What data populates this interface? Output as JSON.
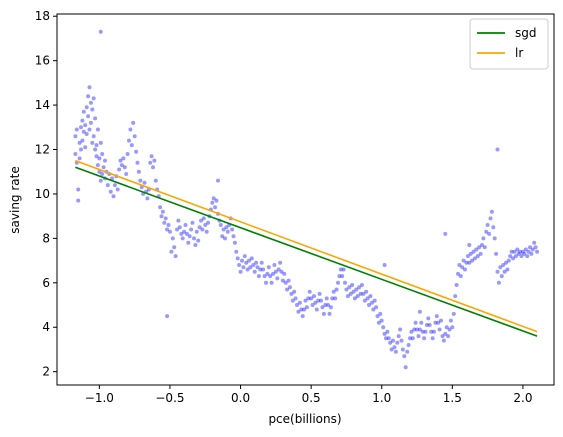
{
  "chart_data": {
    "type": "scatter",
    "title": "",
    "xlabel": "pce(billions)",
    "ylabel": "saving rate",
    "xlim": [
      -1.3,
      2.22
    ],
    "ylim": [
      1.4,
      18.1
    ],
    "xticks": [
      -1.0,
      -0.5,
      0.0,
      0.5,
      1.0,
      1.5,
      2.0
    ],
    "xtick_labels": [
      "−1.0",
      "−0.5",
      "0.0",
      "0.5",
      "1.0",
      "1.5",
      "2.0"
    ],
    "yticks": [
      2,
      4,
      6,
      8,
      10,
      12,
      14,
      16,
      18
    ],
    "ytick_labels": [
      "2",
      "4",
      "6",
      "8",
      "10",
      "12",
      "14",
      "16",
      "18"
    ],
    "grid": false,
    "legend_position": "top-right",
    "scatter": {
      "color": "#0000ff",
      "opacity": 0.4,
      "points": [
        [
          -1.17,
          11.8
        ],
        [
          -1.17,
          12.6
        ],
        [
          -1.16,
          12.9
        ],
        [
          -1.16,
          11.4
        ],
        [
          -1.15,
          10.2
        ],
        [
          -1.15,
          9.7
        ],
        [
          -1.14,
          12.3
        ],
        [
          -1.14,
          11.6
        ],
        [
          -1.13,
          12.0
        ],
        [
          -1.13,
          13.0
        ],
        [
          -1.12,
          12.4
        ],
        [
          -1.12,
          13.3
        ],
        [
          -1.11,
          12.8
        ],
        [
          -1.11,
          13.7
        ],
        [
          -1.1,
          13.1
        ],
        [
          -1.1,
          12.1
        ],
        [
          -1.09,
          13.9
        ],
        [
          -1.09,
          12.7
        ],
        [
          -1.08,
          14.4
        ],
        [
          -1.08,
          13.5
        ],
        [
          -1.07,
          14.8
        ],
        [
          -1.07,
          12.9
        ],
        [
          -1.06,
          13.2
        ],
        [
          -1.06,
          14.1
        ],
        [
          -1.05,
          12.3
        ],
        [
          -1.05,
          13.8
        ],
        [
          -1.04,
          12.6
        ],
        [
          -1.04,
          14.3
        ],
        [
          -1.03,
          12.0
        ],
        [
          -1.03,
          13.4
        ],
        [
          -1.02,
          11.7
        ],
        [
          -1.02,
          12.2
        ],
        [
          -1.01,
          11.3
        ],
        [
          -1.01,
          12.9
        ],
        [
          -1.0,
          11.0
        ],
        [
          -1.0,
          11.6
        ],
        [
          -0.99,
          10.6
        ],
        [
          -0.99,
          12.3
        ],
        [
          -0.98,
          10.9
        ],
        [
          -0.98,
          11.8
        ],
        [
          -0.97,
          11.2
        ],
        [
          -0.96,
          10.7
        ],
        [
          -0.96,
          11.5
        ],
        [
          -0.95,
          11.0
        ],
        [
          -0.94,
          10.4
        ],
        [
          -0.93,
          10.9
        ],
        [
          -0.92,
          10.1
        ],
        [
          -0.91,
          10.7
        ],
        [
          -0.9,
          9.9
        ],
        [
          -0.89,
          10.4
        ],
        [
          -0.88,
          10.8
        ],
        [
          -0.87,
          10.2
        ],
        [
          -0.86,
          11.1
        ],
        [
          -0.85,
          11.5
        ],
        [
          -0.84,
          11.3
        ],
        [
          -0.83,
          11.6
        ],
        [
          -0.82,
          11.2
        ],
        [
          -0.81,
          10.9
        ],
        [
          -0.8,
          11.8
        ],
        [
          -0.79,
          12.4
        ],
        [
          -0.78,
          12.9
        ],
        [
          -0.77,
          12.2
        ],
        [
          -0.76,
          13.2
        ],
        [
          -0.75,
          12.6
        ],
        [
          -0.74,
          11.9
        ],
        [
          -0.73,
          11.4
        ],
        [
          -0.72,
          11.0
        ],
        [
          -0.71,
          10.6
        ],
        [
          -0.7,
          10.3
        ],
        [
          -0.69,
          10.0
        ],
        [
          -0.68,
          10.5
        ],
        [
          -0.67,
          10.1
        ],
        [
          -0.66,
          9.8
        ],
        [
          -0.65,
          10.2
        ],
        [
          -0.64,
          11.4
        ],
        [
          -0.63,
          11.7
        ],
        [
          -0.62,
          11.2
        ],
        [
          -0.61,
          11.5
        ],
        [
          -0.6,
          10.6
        ],
        [
          -0.59,
          10.2
        ],
        [
          -0.58,
          9.9
        ],
        [
          -0.57,
          9.4
        ],
        [
          -0.56,
          9.0
        ],
        [
          -0.55,
          9.2
        ],
        [
          -0.54,
          8.7
        ],
        [
          -0.53,
          8.9
        ],
        [
          -0.52,
          8.4
        ],
        [
          -0.51,
          8.6
        ],
        [
          -0.5,
          8.3
        ],
        [
          -0.49,
          7.4
        ],
        [
          -0.48,
          8.0
        ],
        [
          -0.47,
          7.6
        ],
        [
          -0.46,
          7.2
        ],
        [
          -0.45,
          8.4
        ],
        [
          -0.44,
          8.8
        ],
        [
          -0.43,
          8.5
        ],
        [
          -0.42,
          8.2
        ],
        [
          -0.41,
          8.0
        ],
        [
          -0.4,
          8.3
        ],
        [
          -0.39,
          8.6
        ],
        [
          -0.38,
          8.2
        ],
        [
          -0.37,
          7.8
        ],
        [
          -0.36,
          8.1
        ],
        [
          -0.35,
          8.4
        ],
        [
          -0.34,
          8.7
        ],
        [
          -0.33,
          8.0
        ],
        [
          -0.32,
          7.7
        ],
        [
          -0.31,
          8.3
        ],
        [
          -0.3,
          7.9
        ],
        [
          -0.29,
          8.5
        ],
        [
          -0.28,
          8.8
        ],
        [
          -0.27,
          8.4
        ],
        [
          -0.26,
          8.9
        ],
        [
          -0.25,
          8.6
        ],
        [
          -0.24,
          8.3
        ],
        [
          -0.23,
          8.7
        ],
        [
          -0.22,
          9.0
        ],
        [
          -0.21,
          9.3
        ],
        [
          -0.2,
          9.6
        ],
        [
          -0.19,
          9.8
        ],
        [
          -0.18,
          9.4
        ],
        [
          -0.17,
          9.7
        ],
        [
          -0.16,
          9.1
        ],
        [
          -0.15,
          8.8
        ],
        [
          -0.14,
          8.6
        ],
        [
          -0.13,
          8.1
        ],
        [
          -0.12,
          8.4
        ],
        [
          -0.11,
          8.0
        ],
        [
          -0.1,
          8.5
        ],
        [
          -0.09,
          8.3
        ],
        [
          -0.08,
          8.6
        ],
        [
          -0.07,
          8.9
        ],
        [
          -0.06,
          8.4
        ],
        [
          -0.05,
          8.1
        ],
        [
          -0.04,
          7.8
        ],
        [
          -0.03,
          7.4
        ],
        [
          -0.02,
          7.1
        ],
        [
          -0.01,
          6.8
        ],
        [
          0.0,
          6.5
        ],
        [
          0.01,
          7.0
        ],
        [
          0.02,
          6.7
        ],
        [
          0.03,
          7.2
        ],
        [
          0.04,
          6.9
        ],
        [
          0.05,
          6.6
        ],
        [
          0.06,
          7.0
        ],
        [
          0.07,
          6.7
        ],
        [
          0.08,
          7.1
        ],
        [
          0.09,
          6.8
        ],
        [
          0.1,
          6.5
        ],
        [
          0.11,
          6.9
        ],
        [
          0.12,
          6.7
        ],
        [
          0.13,
          6.3
        ],
        [
          0.14,
          6.6
        ],
        [
          0.15,
          6.9
        ],
        [
          0.16,
          6.6
        ],
        [
          0.17,
          6.3
        ],
        [
          0.18,
          6.0
        ],
        [
          0.19,
          6.4
        ],
        [
          0.2,
          6.7
        ],
        [
          0.21,
          6.3
        ],
        [
          0.22,
          6.0
        ],
        [
          0.23,
          6.4
        ],
        [
          0.24,
          6.8
        ],
        [
          0.25,
          6.5
        ],
        [
          0.26,
          6.2
        ],
        [
          0.27,
          6.6
        ],
        [
          0.28,
          6.9
        ],
        [
          0.29,
          6.5
        ],
        [
          0.3,
          6.1
        ],
        [
          0.31,
          6.4
        ],
        [
          0.32,
          6.0
        ],
        [
          0.33,
          5.7
        ],
        [
          0.34,
          6.1
        ],
        [
          0.35,
          5.8
        ],
        [
          0.36,
          5.5
        ],
        [
          0.37,
          5.2
        ],
        [
          0.38,
          5.6
        ],
        [
          0.39,
          5.3
        ],
        [
          0.4,
          5.0
        ],
        [
          0.41,
          4.7
        ],
        [
          0.42,
          5.1
        ],
        [
          0.43,
          4.8
        ],
        [
          0.44,
          4.5
        ],
        [
          0.45,
          4.8
        ],
        [
          0.46,
          5.2
        ],
        [
          0.47,
          4.9
        ],
        [
          0.48,
          5.3
        ],
        [
          0.49,
          5.6
        ],
        [
          0.5,
          5.3
        ],
        [
          0.51,
          5.0
        ],
        [
          0.52,
          5.4
        ],
        [
          0.53,
          5.1
        ],
        [
          0.54,
          4.8
        ],
        [
          0.55,
          5.2
        ],
        [
          0.56,
          5.5
        ],
        [
          0.57,
          5.2
        ],
        [
          0.58,
          4.9
        ],
        [
          0.59,
          4.6
        ],
        [
          0.6,
          5.0
        ],
        [
          0.61,
          5.3
        ],
        [
          0.62,
          5.0
        ],
        [
          0.63,
          4.6
        ],
        [
          0.64,
          4.9
        ],
        [
          0.65,
          5.3
        ],
        [
          0.66,
          5.6
        ],
        [
          0.67,
          5.3
        ],
        [
          0.68,
          5.7
        ],
        [
          0.69,
          6.0
        ],
        [
          0.7,
          6.3
        ],
        [
          0.71,
          6.6
        ],
        [
          0.72,
          6.3
        ],
        [
          0.73,
          6.6
        ],
        [
          0.74,
          6.0
        ],
        [
          0.75,
          5.7
        ],
        [
          0.76,
          5.4
        ],
        [
          0.77,
          5.8
        ],
        [
          0.78,
          5.5
        ],
        [
          0.79,
          5.9
        ],
        [
          0.8,
          5.6
        ],
        [
          0.81,
          5.3
        ],
        [
          0.82,
          5.7
        ],
        [
          0.83,
          5.4
        ],
        [
          0.84,
          5.8
        ],
        [
          0.85,
          5.5
        ],
        [
          0.86,
          5.9
        ],
        [
          0.87,
          5.5
        ],
        [
          0.88,
          5.2
        ],
        [
          0.89,
          5.6
        ],
        [
          0.9,
          5.3
        ],
        [
          0.91,
          5.0
        ],
        [
          0.92,
          5.4
        ],
        [
          0.93,
          5.1
        ],
        [
          0.94,
          4.8
        ],
        [
          0.95,
          5.2
        ],
        [
          0.96,
          4.9
        ],
        [
          0.97,
          4.5
        ],
        [
          0.98,
          4.2
        ],
        [
          0.99,
          4.6
        ],
        [
          1.0,
          4.3
        ],
        [
          1.01,
          4.0
        ],
        [
          1.02,
          3.7
        ],
        [
          1.03,
          3.5
        ],
        [
          1.04,
          3.8
        ],
        [
          1.05,
          3.5
        ],
        [
          1.06,
          3.3
        ],
        [
          1.07,
          3.0
        ],
        [
          1.08,
          3.4
        ],
        [
          1.09,
          3.1
        ],
        [
          1.1,
          2.9
        ],
        [
          1.11,
          3.3
        ],
        [
          1.12,
          3.6
        ],
        [
          1.13,
          3.9
        ],
        [
          1.14,
          3.4
        ],
        [
          1.15,
          3.0
        ],
        [
          1.16,
          2.7
        ],
        [
          1.17,
          2.2
        ],
        [
          1.18,
          2.9
        ],
        [
          1.19,
          3.2
        ],
        [
          1.2,
          3.5
        ],
        [
          1.21,
          3.8
        ],
        [
          1.22,
          3.5
        ],
        [
          1.23,
          3.9
        ],
        [
          1.24,
          4.2
        ],
        [
          1.25,
          3.9
        ],
        [
          1.26,
          3.6
        ],
        [
          1.27,
          3.9
        ],
        [
          1.28,
          4.2
        ],
        [
          1.29,
          3.8
        ],
        [
          1.3,
          3.5
        ],
        [
          1.31,
          3.8
        ],
        [
          1.32,
          4.1
        ],
        [
          1.33,
          4.4
        ],
        [
          1.34,
          4.1
        ],
        [
          1.35,
          3.8
        ],
        [
          1.36,
          3.5
        ],
        [
          1.37,
          3.8
        ],
        [
          1.38,
          4.2
        ],
        [
          1.39,
          4.5
        ],
        [
          1.4,
          4.2
        ],
        [
          1.41,
          3.9
        ],
        [
          1.42,
          4.3
        ],
        [
          1.43,
          3.6
        ],
        [
          1.44,
          3.4
        ],
        [
          1.45,
          3.7
        ],
        [
          1.46,
          4.0
        ],
        [
          1.47,
          3.6
        ],
        [
          1.48,
          3.9
        ],
        [
          1.49,
          4.3
        ],
        [
          1.5,
          4.0
        ],
        [
          1.51,
          4.6
        ],
        [
          1.52,
          5.4
        ],
        [
          1.53,
          5.9
        ],
        [
          1.54,
          6.4
        ],
        [
          1.55,
          6.8
        ],
        [
          1.56,
          6.3
        ],
        [
          1.57,
          6.7
        ],
        [
          1.58,
          7.0
        ],
        [
          1.59,
          6.6
        ],
        [
          1.6,
          6.9
        ],
        [
          1.61,
          7.2
        ],
        [
          1.62,
          6.9
        ],
        [
          1.63,
          7.3
        ],
        [
          1.64,
          7.0
        ],
        [
          1.65,
          7.4
        ],
        [
          1.66,
          7.1
        ],
        [
          1.67,
          7.5
        ],
        [
          1.68,
          7.2
        ],
        [
          1.69,
          7.6
        ],
        [
          1.7,
          7.3
        ],
        [
          1.71,
          7.7
        ],
        [
          1.72,
          8.0
        ],
        [
          1.73,
          7.6
        ],
        [
          1.74,
          8.3
        ],
        [
          1.75,
          8.6
        ],
        [
          1.76,
          8.2
        ],
        [
          1.77,
          8.9
        ],
        [
          1.78,
          9.2
        ],
        [
          1.79,
          8.5
        ],
        [
          1.8,
          8.0
        ],
        [
          1.81,
          7.3
        ],
        [
          1.82,
          6.5
        ],
        [
          1.83,
          6.0
        ],
        [
          1.84,
          6.7
        ],
        [
          1.85,
          6.3
        ],
        [
          1.86,
          6.8
        ],
        [
          1.87,
          6.5
        ],
        [
          1.88,
          6.9
        ],
        [
          1.89,
          6.6
        ],
        [
          1.9,
          7.0
        ],
        [
          1.91,
          7.2
        ],
        [
          1.92,
          7.4
        ],
        [
          1.93,
          7.1
        ],
        [
          1.94,
          7.4
        ],
        [
          1.95,
          7.2
        ],
        [
          1.96,
          7.5
        ],
        [
          1.97,
          7.3
        ],
        [
          1.98,
          7.4
        ],
        [
          1.99,
          7.2
        ],
        [
          2.0,
          7.4
        ],
        [
          2.01,
          7.3
        ],
        [
          2.02,
          7.5
        ],
        [
          2.03,
          7.2
        ],
        [
          2.04,
          7.4
        ],
        [
          2.05,
          7.6
        ],
        [
          2.06,
          7.3
        ],
        [
          2.07,
          7.5
        ],
        [
          2.08,
          7.8
        ],
        [
          2.09,
          7.6
        ],
        [
          2.1,
          7.4
        ],
        [
          -0.99,
          17.3
        ],
        [
          -0.52,
          4.5
        ],
        [
          1.82,
          12.0
        ],
        [
          1.45,
          8.2
        ],
        [
          1.02,
          6.8
        ],
        [
          -0.16,
          10.6
        ],
        [
          1.62,
          7.7
        ],
        [
          1.27,
          4.7
        ]
      ]
    },
    "series": [
      {
        "name": "sgd",
        "type": "line",
        "color": "#008000",
        "x": [
          -1.17,
          2.1
        ],
        "y": [
          11.2,
          3.6
        ]
      },
      {
        "name": "lr",
        "type": "line",
        "color": "#ffa500",
        "x": [
          -1.17,
          2.1
        ],
        "y": [
          11.5,
          3.8
        ]
      }
    ]
  }
}
